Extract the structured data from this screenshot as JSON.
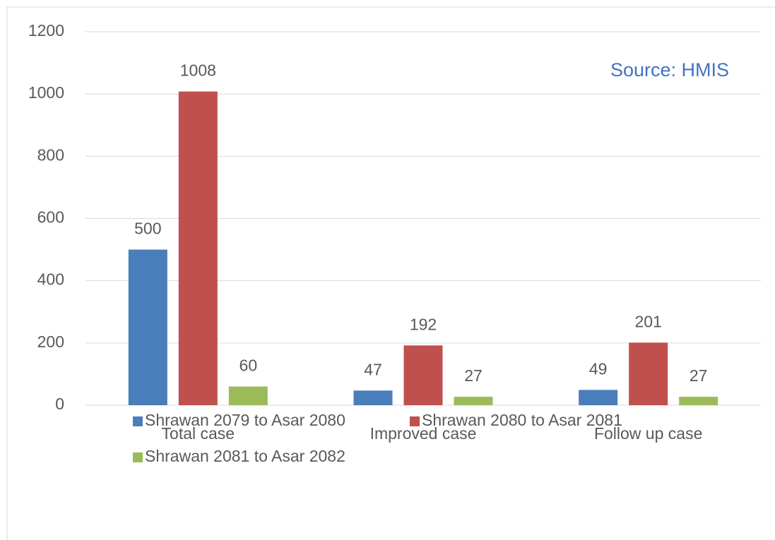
{
  "chart_data": {
    "type": "bar",
    "annotation": "Source: HMIS",
    "categories": [
      "Total case",
      "Improved case",
      "Follow up case"
    ],
    "series": [
      {
        "name": "Shrawan 2079 to Asar 2080",
        "color": "#4a7ebb",
        "values": [
          500,
          47,
          49
        ]
      },
      {
        "name": "Shrawan 2080 to Asar 2081",
        "color": "#c0504d",
        "values": [
          1008,
          192,
          201
        ]
      },
      {
        "name": "Shrawan 2081 to Asar 2082",
        "color": "#9bbb59",
        "values": [
          60,
          27,
          27
        ]
      }
    ],
    "ylim": [
      0,
      1200
    ],
    "yticks": [
      0,
      200,
      400,
      600,
      800,
      1000,
      1200
    ],
    "grid": true,
    "legend": "bottom"
  }
}
